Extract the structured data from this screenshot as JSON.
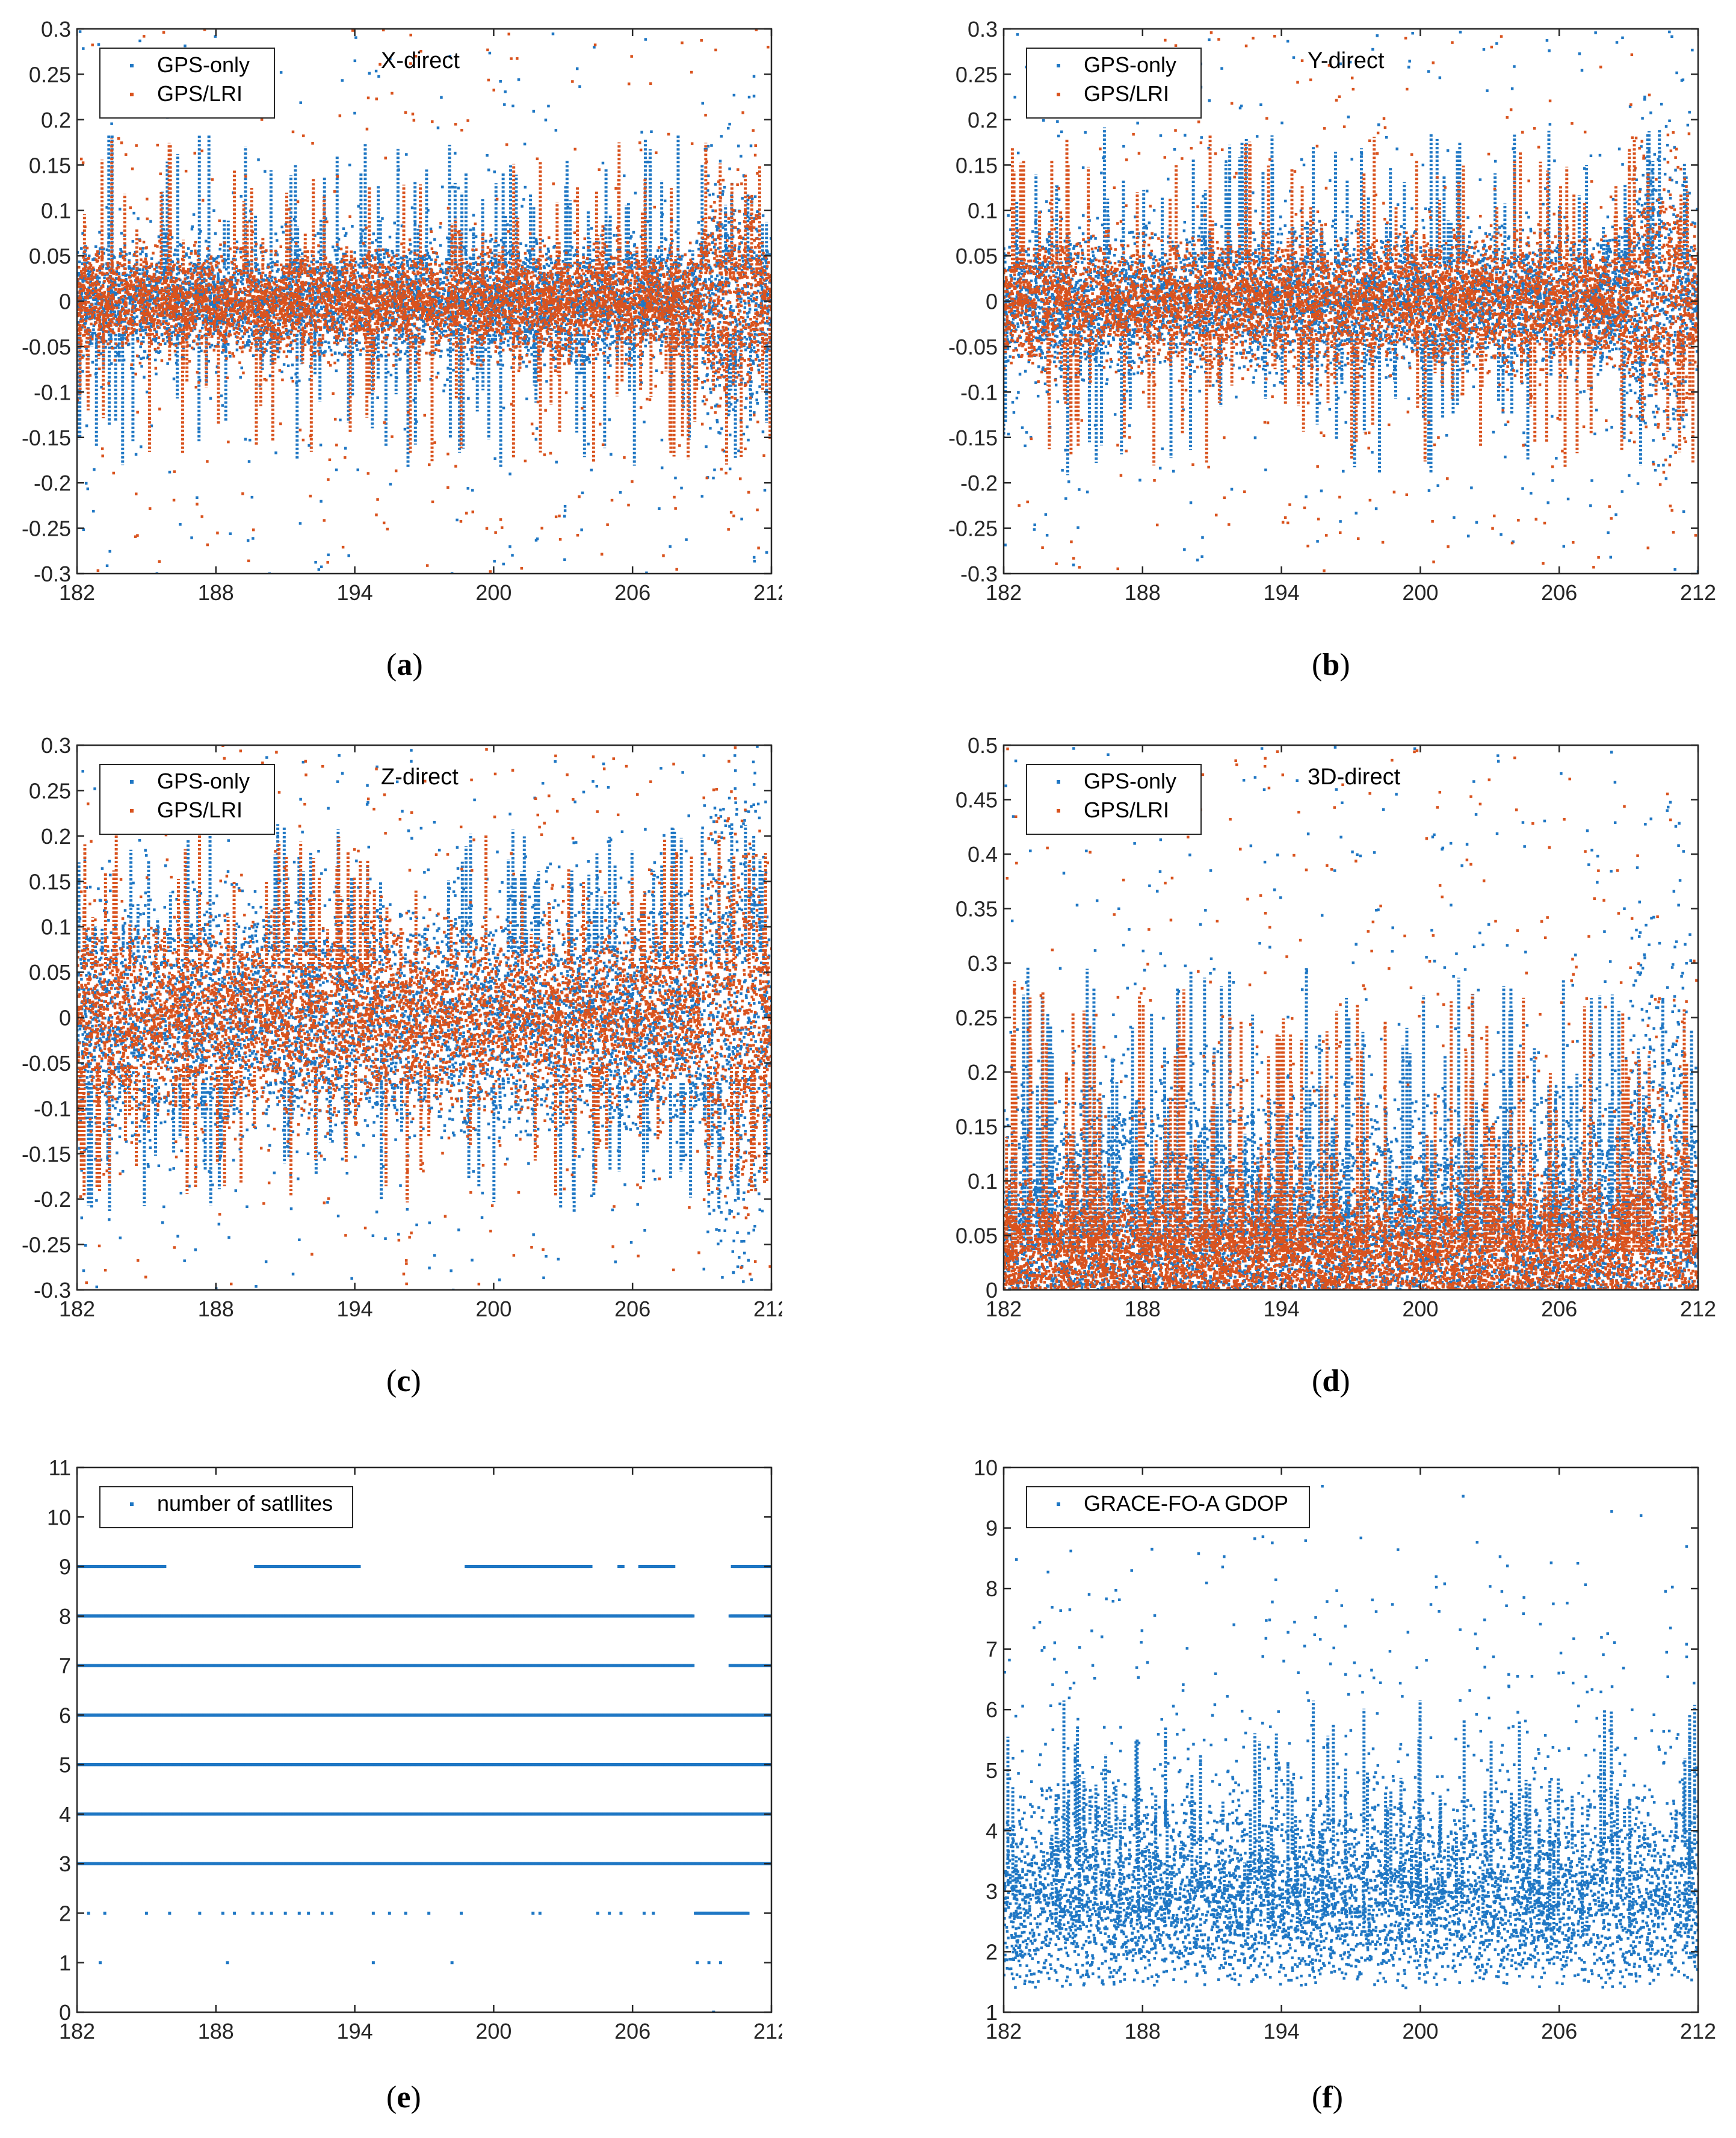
{
  "colors": {
    "gps_only": "#1f77c4",
    "gps_lri": "#d9531e",
    "axis": "#262626"
  },
  "chart_data": [
    {
      "id": "a",
      "type": "scatter",
      "caption": "a",
      "title": "X-direct",
      "xlim": [
        182,
        212
      ],
      "ylim": [
        -0.3,
        0.3
      ],
      "xticks": [
        "182",
        "188",
        "194",
        "200",
        "206",
        "212"
      ],
      "yticks": [
        "-0.3",
        "-0.25",
        "-0.2",
        "-0.15",
        "-0.1",
        "-0.05",
        "0",
        "0.05",
        "0.1",
        "0.15",
        "0.2",
        "0.25",
        "0.3"
      ],
      "series": [
        {
          "name": "GPS-only",
          "color": "#1f77c4",
          "center": 0,
          "core": 0.03,
          "spikeMax": 0.3
        },
        {
          "name": "GPS/LRI",
          "color": "#d9531e",
          "center": 0,
          "core": 0.025,
          "spikeMax": 0.3
        }
      ]
    },
    {
      "id": "b",
      "type": "scatter",
      "caption": "b",
      "title": "Y-direct",
      "xlim": [
        182,
        212
      ],
      "ylim": [
        -0.3,
        0.3
      ],
      "xticks": [
        "182",
        "188",
        "194",
        "200",
        "206",
        "212"
      ],
      "yticks": [
        "-0.3",
        "-0.25",
        "-0.2",
        "-0.15",
        "-0.1",
        "-0.05",
        "0",
        "0.05",
        "0.1",
        "0.15",
        "0.2",
        "0.25",
        "0.3"
      ],
      "series": [
        {
          "name": "GPS-only",
          "color": "#1f77c4",
          "center": 0,
          "core": 0.035,
          "spikeMax": 0.3
        },
        {
          "name": "GPS/LRI",
          "color": "#d9531e",
          "center": 0,
          "core": 0.03,
          "spikeMax": 0.3
        }
      ]
    },
    {
      "id": "c",
      "type": "scatter",
      "caption": "c",
      "title": "Z-direct",
      "xlim": [
        182,
        212
      ],
      "ylim": [
        -0.3,
        0.3
      ],
      "xticks": [
        "182",
        "188",
        "194",
        "200",
        "206",
        "212"
      ],
      "yticks": [
        "-0.3",
        "-0.25",
        "-0.2",
        "-0.15",
        "-0.1",
        "-0.05",
        "0",
        "0.05",
        "0.1",
        "0.15",
        "0.2",
        "0.25",
        "0.3"
      ],
      "series": [
        {
          "name": "GPS-only",
          "color": "#1f77c4",
          "center": 0,
          "core": 0.06,
          "spikeMax": 0.3
        },
        {
          "name": "GPS/LRI",
          "color": "#d9531e",
          "center": 0,
          "core": 0.045,
          "spikeMax": 0.3
        }
      ]
    },
    {
      "id": "d",
      "type": "scatter",
      "caption": "d",
      "title": "3D-direct",
      "xlim": [
        182,
        212
      ],
      "ylim": [
        0,
        0.5
      ],
      "xticks": [
        "182",
        "188",
        "194",
        "200",
        "206",
        "212"
      ],
      "yticks": [
        "0",
        "0.05",
        "0.1",
        "0.15",
        "0.2",
        "0.25",
        "0.3",
        "0.35",
        "0.4",
        "0.45",
        "0.5"
      ],
      "series": [
        {
          "name": "GPS-only",
          "color": "#1f77c4",
          "center": 0.05,
          "core": 0.06,
          "spikeMax": 0.5
        },
        {
          "name": "GPS/LRI",
          "color": "#d9531e",
          "center": 0.035,
          "core": 0.03,
          "spikeMax": 0.5
        }
      ]
    },
    {
      "id": "e",
      "type": "scatter",
      "caption": "e",
      "title": "",
      "xlim": [
        182,
        212
      ],
      "ylim": [
        0,
        11
      ],
      "xticks": [
        "182",
        "188",
        "194",
        "200",
        "206",
        "212"
      ],
      "yticks": [
        "0",
        "1",
        "2",
        "3",
        "4",
        "5",
        "6",
        "7",
        "8",
        "9",
        "10",
        "11"
      ],
      "series": [
        {
          "name": "number of satllites",
          "color": "#1f77c4",
          "levels": [
            {
              "y": 9,
              "segments": [
                [
                  182,
                  185.8
                ],
                [
                  189.7,
                  194.2
                ],
                [
                  198.8,
                  204.2
                ],
                [
                  205.4,
                  205.6
                ],
                [
                  206.3,
                  207.8
                ],
                [
                  210.3,
                  212
                ]
              ]
            },
            {
              "y": 8,
              "segments": [
                [
                  182,
                  208.6
                ],
                [
                  210.2,
                  212
                ]
              ]
            },
            {
              "y": 7,
              "segments": [
                [
                  182,
                  208.6
                ],
                [
                  210.2,
                  212
                ]
              ]
            },
            {
              "y": 6,
              "segments": [
                [
                  182,
                  212
                ]
              ]
            },
            {
              "y": 5,
              "segments": [
                [
                  182,
                  212
                ]
              ]
            },
            {
              "y": 4,
              "segments": [
                [
                  182,
                  212
                ]
              ]
            },
            {
              "y": 3,
              "segments": [
                [
                  182,
                  212
                ]
              ]
            },
            {
              "y": 2,
              "points": [
                182.5,
                183.2,
                185.0,
                186.0,
                187.3,
                188.3,
                188.8,
                189.6,
                190.0,
                190.4,
                191.0,
                191.6,
                192.0,
                192.6,
                193.0,
                194.8,
                195.5,
                196.2,
                197.2,
                198.6,
                201.7,
                202.0,
                204.5,
                205.0,
                205.5,
                206.5,
                206.9
              ],
              "segments": [
                [
                  208.7,
                  211.0
                ]
              ]
            },
            {
              "y": 1,
              "points": [
                183.0,
                188.5,
                194.8,
                198.2,
                208.8,
                209.3,
                209.8
              ]
            },
            {
              "y": 0,
              "points": [
                209.5
              ]
            }
          ]
        }
      ]
    },
    {
      "id": "f",
      "type": "scatter",
      "caption": "f",
      "title": "",
      "xlim": [
        182,
        212
      ],
      "ylim": [
        1,
        10
      ],
      "xticks": [
        "182",
        "188",
        "194",
        "200",
        "206",
        "212"
      ],
      "yticks": [
        "1",
        "2",
        "3",
        "4",
        "5",
        "6",
        "7",
        "8",
        "9",
        "10"
      ],
      "series": [
        {
          "name": "GRACE-FO-A GDOP",
          "color": "#1f77c4",
          "min": 1.4,
          "core": 3.5,
          "spikeMax": 10
        }
      ]
    }
  ]
}
